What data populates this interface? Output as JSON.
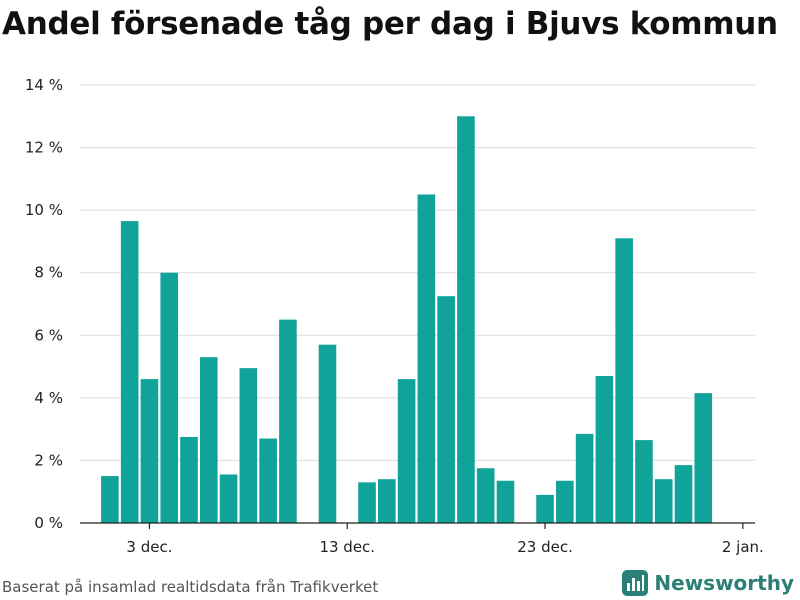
{
  "title": "Andel försenade tåg per dag i Bjuvs kommun",
  "source": "Baserat på insamlad realtidsdata från Trafikverket",
  "brand": "Newsworthy",
  "colors": {
    "bar": "#0fa39a",
    "grid": "#dcdcdc",
    "axis": "#222222",
    "brand": "#2a7f76"
  },
  "chart_data": {
    "type": "bar",
    "ylabel": "",
    "xlabel": "",
    "ylim": [
      0,
      14
    ],
    "yticks": [
      0,
      2,
      4,
      6,
      8,
      10,
      12,
      14
    ],
    "ytick_labels": [
      "0 %",
      "2 %",
      "4 %",
      "6 %",
      "8 %",
      "10 %",
      "12 %",
      "14 %"
    ],
    "xtick_labels": [
      "3 dec.",
      "13 dec.",
      "23 dec.",
      "2 jan."
    ],
    "xtick_days": [
      2,
      12,
      22,
      32
    ],
    "grid": true,
    "start_day": 0,
    "values": [
      1.5,
      9.65,
      4.6,
      8.0,
      2.75,
      5.3,
      1.55,
      4.95,
      2.7,
      6.5,
      null,
      5.7,
      null,
      1.3,
      1.4,
      4.6,
      10.5,
      7.25,
      13.0,
      1.75,
      1.35,
      null,
      0.9,
      1.35,
      2.85,
      4.7,
      9.1,
      2.65,
      1.4,
      1.85,
      4.15
    ]
  }
}
